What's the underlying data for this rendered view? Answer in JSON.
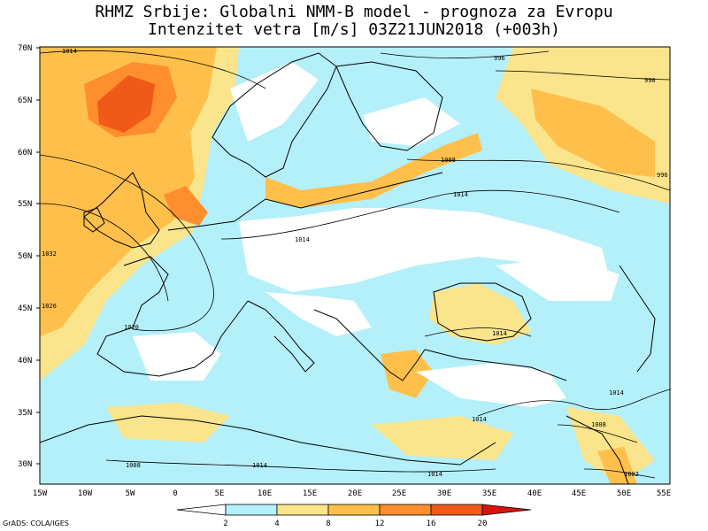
{
  "header": {
    "title": "RHMZ Srbije: Globalni NMM-B model - prognoza za Evropu",
    "subtitle": "Intenzitet vetra [m/s] 03Z21JUN2018 (+003h)"
  },
  "map": {
    "lat_labels": [
      "70N",
      "65N",
      "60N",
      "55N",
      "50N",
      "45N",
      "40N",
      "35N",
      "30N"
    ],
    "lon_labels": [
      "15W",
      "10W",
      "5W",
      "0",
      "5E",
      "10E",
      "15E",
      "20E",
      "25E",
      "30E",
      "35E",
      "40E",
      "45E",
      "50E",
      "55E"
    ],
    "isobar_labels": [
      "1014",
      "996",
      "990",
      "1008",
      "1014",
      "1014",
      "1020",
      "1014",
      "1014",
      "1014",
      "1008",
      "1008",
      "1014",
      "1014",
      "1002",
      "996",
      "1026",
      "1032"
    ],
    "colors": {
      "sea_calm": "#b4f0fa",
      "land_calm": "#ffffff",
      "light": "#fae48c",
      "moderate": "#ffc04b",
      "strong": "#ff8e2f",
      "very_strong": "#f05a18",
      "extreme": "#d8140a",
      "coast": "#000000"
    }
  },
  "colorbar": {
    "levels": [
      "2",
      "4",
      "8",
      "12",
      "16",
      "20"
    ],
    "colors": [
      "#ffffff",
      "#b4f0fa",
      "#fae48c",
      "#ffc04b",
      "#ff8e2f",
      "#f05a18",
      "#d8140a"
    ]
  },
  "footer": {
    "credit": "GrADS: COLA/IGES"
  }
}
